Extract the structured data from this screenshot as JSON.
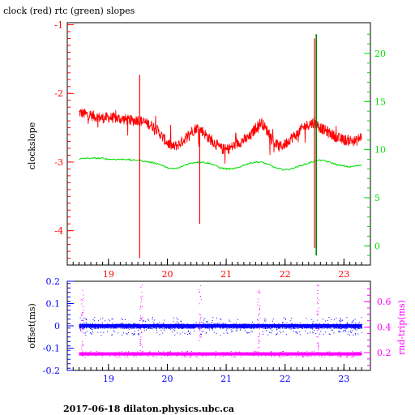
{
  "title": "clock (red) rtc (green) slopes",
  "footer": "2017-06-18  dilaton.physics.ubc.ca",
  "colors": {
    "clock": "#ff0000",
    "rtc": "#00dd00",
    "offset": "#0000ff",
    "rndtrip": "#ff00ff",
    "axis_left": "#ff0000",
    "axis_right": "#00dd00",
    "axis_bottom": "#0000ff"
  },
  "chart_data": [
    {
      "type": "line",
      "ylabel": "clockslope",
      "xlim": [
        18.3,
        23.45
      ],
      "ylim_left": [
        -4.5,
        -0.97
      ],
      "ylim_right": [
        -2.0,
        23.2
      ],
      "xticks": [
        "19",
        "20",
        "21",
        "22",
        "23"
      ],
      "yticks_left": [
        "-1",
        "-2",
        "-3",
        "-4"
      ],
      "yticks_right": [
        "0",
        "5",
        "10",
        "15",
        "20"
      ],
      "series": [
        {
          "name": "clock",
          "color": "#ff0000",
          "x": [
            18.5,
            18.6,
            18.7,
            18.8,
            18.9,
            19.0,
            19.1,
            19.2,
            19.3,
            19.4,
            19.5,
            19.6,
            19.7,
            19.8,
            19.9,
            20.0,
            20.1,
            20.2,
            20.3,
            20.4,
            20.5,
            20.6,
            20.7,
            20.8,
            20.9,
            21.0,
            21.1,
            21.2,
            21.3,
            21.4,
            21.5,
            21.6,
            21.7,
            21.8,
            21.9,
            22.0,
            22.1,
            22.2,
            22.3,
            22.4,
            22.5,
            22.6,
            22.7,
            22.8,
            22.9,
            23.0,
            23.1,
            23.2,
            23.3
          ],
          "y": [
            -2.28,
            -2.3,
            -2.32,
            -2.34,
            -2.36,
            -2.35,
            -2.36,
            -2.37,
            -2.38,
            -2.4,
            -2.38,
            -2.42,
            -2.45,
            -2.5,
            -2.62,
            -2.72,
            -2.78,
            -2.74,
            -2.66,
            -2.56,
            -2.5,
            -2.55,
            -2.65,
            -2.72,
            -2.8,
            -2.82,
            -2.78,
            -2.72,
            -2.68,
            -2.64,
            -2.5,
            -2.42,
            -2.55,
            -2.7,
            -2.78,
            -2.74,
            -2.65,
            -2.6,
            -2.5,
            -2.45,
            -2.42,
            -2.5,
            -2.55,
            -2.6,
            -2.65,
            -2.68,
            -2.68,
            -2.7,
            -2.62
          ]
        },
        {
          "name": "rtc",
          "color": "#00dd00",
          "x": [
            18.5,
            18.6,
            18.7,
            18.8,
            18.9,
            19.0,
            19.1,
            19.2,
            19.3,
            19.4,
            19.5,
            19.6,
            19.7,
            19.8,
            19.9,
            20.0,
            20.1,
            20.2,
            20.3,
            20.4,
            20.5,
            20.6,
            20.7,
            20.8,
            20.9,
            21.0,
            21.1,
            21.2,
            21.3,
            21.4,
            21.5,
            21.6,
            21.7,
            21.8,
            21.9,
            22.0,
            22.1,
            22.2,
            22.3,
            22.4,
            22.5,
            22.6,
            22.7,
            22.8,
            22.9,
            23.0,
            23.1,
            23.2,
            23.3
          ],
          "y": [
            9.0,
            9.1,
            9.1,
            9.1,
            9.1,
            9.0,
            9.0,
            9.0,
            9.0,
            8.9,
            8.9,
            8.8,
            8.7,
            8.6,
            8.4,
            8.1,
            8.0,
            8.1,
            8.4,
            8.6,
            8.7,
            8.7,
            8.6,
            8.4,
            8.1,
            8.0,
            8.0,
            8.1,
            8.4,
            8.6,
            8.7,
            8.7,
            8.5,
            8.2,
            8.0,
            7.9,
            8.0,
            8.2,
            8.4,
            8.6,
            8.8,
            8.9,
            8.8,
            8.6,
            8.4,
            8.3,
            8.2,
            8.3,
            8.4
          ]
        }
      ],
      "spikes": [
        {
          "series": "clock",
          "x": 19.53,
          "y_low": -4.4,
          "y_high": -1.73
        },
        {
          "series": "clock",
          "x": 20.55,
          "y_low": -3.9,
          "y_high": -2.6
        },
        {
          "series": "clock",
          "x": 22.5,
          "y_low": -4.25,
          "y_high": -1.2
        },
        {
          "series": "rtc",
          "x": 22.53,
          "y_low": -1.0,
          "y_high": 22.0
        }
      ]
    },
    {
      "type": "scatter",
      "ylabel_left": "offset(ms)",
      "ylabel_right": "rnd-trip(ms)",
      "xlim": [
        18.3,
        23.45
      ],
      "ylim_left": [
        -0.2,
        0.2
      ],
      "ylim_right": [
        0.06,
        0.76
      ],
      "xticks": [
        "19",
        "20",
        "21",
        "22",
        "23"
      ],
      "yticks_left": [
        "0.2",
        "0.1",
        "0",
        "-0.1",
        "-0.2"
      ],
      "yticks_right": [
        "0.6",
        "0.4",
        "0.2"
      ],
      "series": [
        {
          "name": "offset",
          "color": "#0000ff",
          "x_start": 18.5,
          "x_end": 23.3,
          "center": 0.0,
          "spread": 0.04
        },
        {
          "name": "rnd-trip",
          "color": "#ff00ff",
          "x_start": 18.5,
          "x_end": 23.3,
          "center": 0.19,
          "spread": 0.03
        }
      ],
      "spike_x": [
        18.55,
        19.55,
        20.55,
        21.55,
        22.55
      ]
    }
  ]
}
